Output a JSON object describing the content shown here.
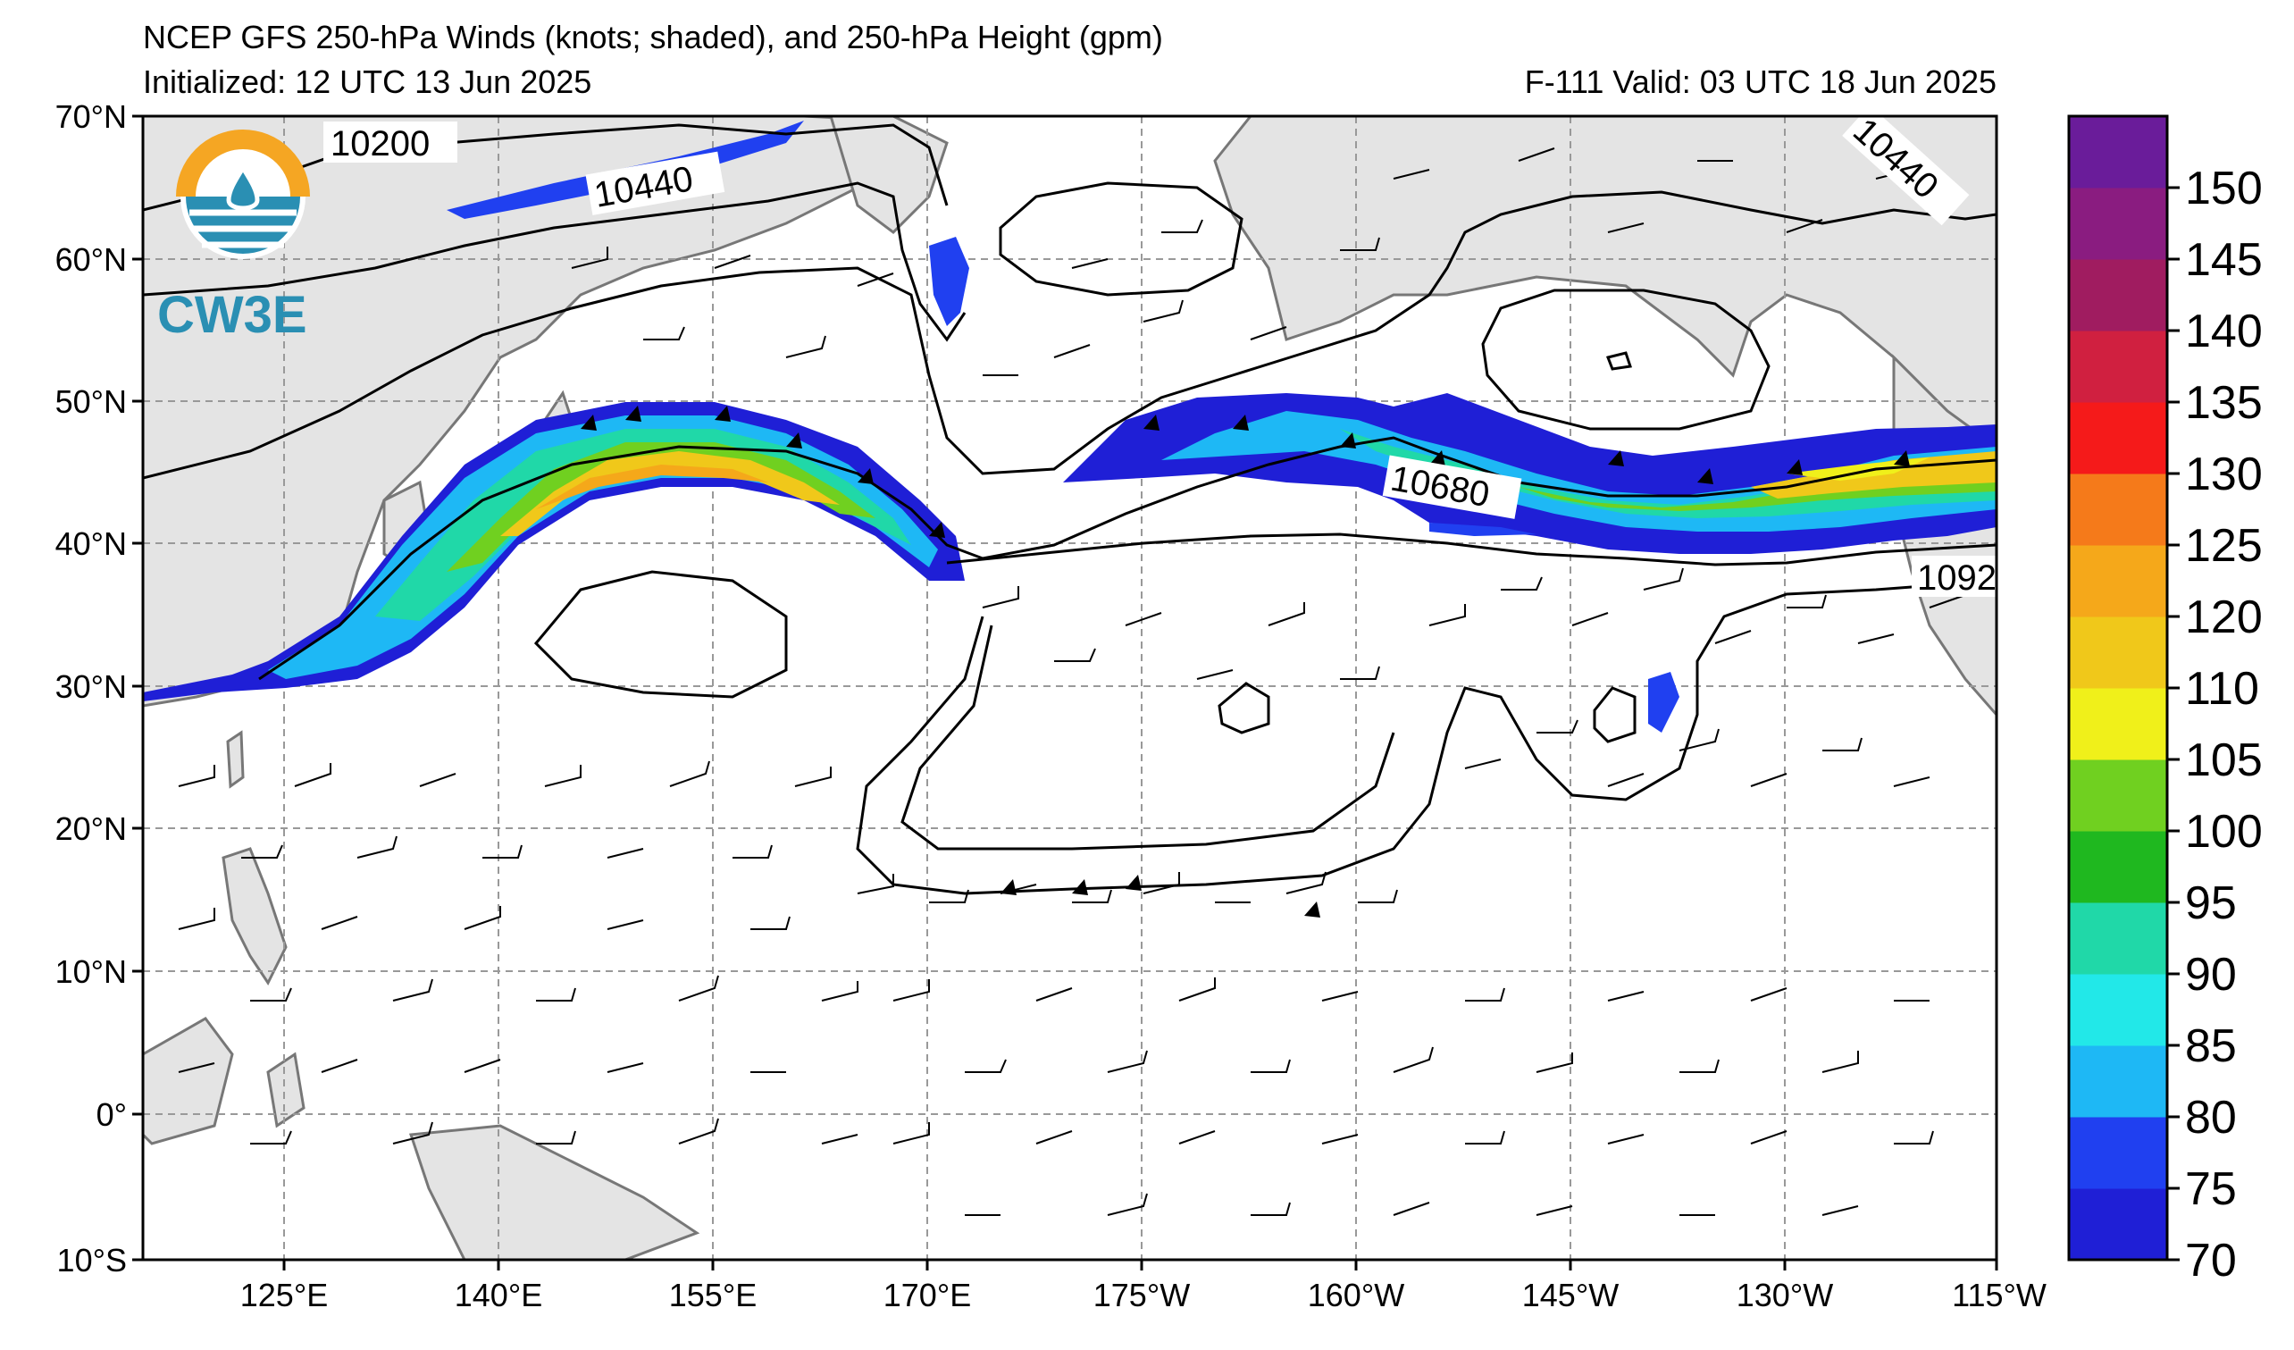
{
  "header": {
    "title": "NCEP GFS 250-hPa Winds (knots; shaded), and 250-hPa Height (gpm)",
    "initialized": "Initialized: 12 UTC 13 Jun 2025",
    "valid": "F-111  Valid: 03 UTC 18 Jun 2025"
  },
  "logo": {
    "text": "CW3E",
    "colors": {
      "ring": "#f5a623",
      "water": "#2a8fb3",
      "text": "#2a8fb3"
    }
  },
  "axes": {
    "lat_labels": [
      "70°N",
      "60°N",
      "50°N",
      "40°N",
      "30°N",
      "20°N",
      "10°N",
      "0°",
      "10°S"
    ],
    "lon_labels": [
      "125°E",
      "140°E",
      "155°E",
      "170°E",
      "175°W",
      "160°W",
      "145°W",
      "130°W",
      "115°W"
    ],
    "gridlines": true
  },
  "contour_labels": [
    "10200",
    "10440",
    "10440",
    "10680",
    "1092"
  ],
  "colorbar": {
    "ticks": [
      "150",
      "145",
      "140",
      "135",
      "130",
      "125",
      "120",
      "110",
      "105",
      "100",
      "95",
      "90",
      "85",
      "80",
      "75",
      "70"
    ],
    "colors_bottom_to_top": [
      "#1f1fd6",
      "#2040f0",
      "#1eb8f5",
      "#22e8e8",
      "#20d8a8",
      "#1fb81f",
      "#70d020",
      "#f0f01a",
      "#f0c81a",
      "#f5a81a",
      "#f57a1a",
      "#f51a1a",
      "#d02040",
      "#a01c60",
      "#8a1c80",
      "#6a1c9a"
    ]
  },
  "chart_data": {
    "type": "map",
    "region": "North Pacific",
    "lat_range": [
      "10°S",
      "70°N"
    ],
    "lon_range": [
      "115°E",
      "115°W"
    ],
    "field_shaded": "250-hPa wind speed (knots)",
    "field_contoured": "250-hPa geopotential height (gpm)",
    "shading_levels": [
      70,
      75,
      80,
      85,
      90,
      95,
      100,
      105,
      110,
      120,
      125,
      130,
      135,
      140,
      145,
      150
    ],
    "jet_maxima": [
      "~120 kt near 40-45°N, 140-160°E",
      "~110 kt near 43-47°N, 140-120°W"
    ]
  }
}
